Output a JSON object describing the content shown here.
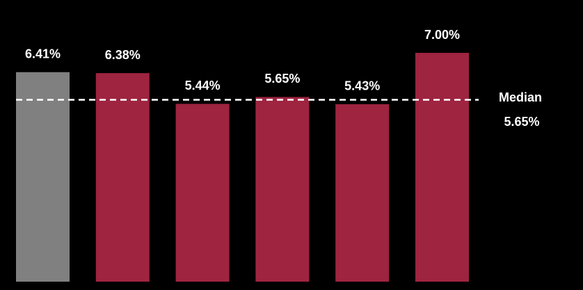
{
  "chart_data": {
    "type": "bar",
    "values": [
      6.41,
      6.38,
      5.44,
      5.65,
      5.43,
      7
    ],
    "value_labels": [
      "6.41%",
      "6.38%",
      "5.44%",
      "5.65%",
      "5.43%",
      "7.00%"
    ],
    "colors": [
      "#808080",
      "#9e2440",
      "#9e2440",
      "#9e2440",
      "#9e2440",
      "#9e2440"
    ],
    "reference_line": {
      "label": "Median",
      "value": 5.65,
      "value_label": "5.65%",
      "color": "#ffffff"
    }
  }
}
